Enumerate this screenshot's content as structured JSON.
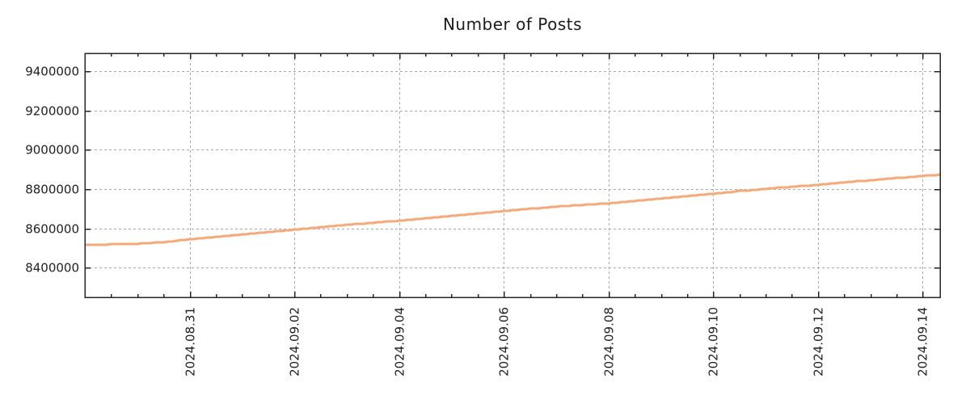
{
  "chart_data": {
    "type": "line",
    "title": "Number of Posts",
    "legend_position": "none",
    "grid": true,
    "x_axis": {
      "start": "2024.08.29 00:00",
      "end": "2024.09.14 08:00",
      "major_tick_labels": [
        "2024.08.31",
        "2024.09.02",
        "2024.09.04",
        "2024.09.06",
        "2024.09.08",
        "2024.09.10",
        "2024.09.12",
        "2024.09.14"
      ],
      "minor_tick_interval_days": 0.5
    },
    "y_axis": {
      "min": 8250000,
      "max": 9490000,
      "tick_values": [
        8400000,
        8600000,
        8800000,
        9000000,
        9200000,
        9400000
      ]
    },
    "series": [
      {
        "name": "Number of Posts",
        "color": "#f6a878",
        "style": "steps",
        "points": [
          [
            "2024.08.29 00:00",
            8515000
          ],
          [
            "2024.08.29 12:00",
            8519000
          ],
          [
            "2024.08.30 00:00",
            8523000
          ],
          [
            "2024.08.30 12:00",
            8530000
          ],
          [
            "2024.08.31 00:00",
            8545000
          ],
          [
            "2024.08.31 12:00",
            8558000
          ],
          [
            "2024.09.01 00:00",
            8570000
          ],
          [
            "2024.09.01 12:00",
            8582000
          ],
          [
            "2024.09.02 00:00",
            8593000
          ],
          [
            "2024.09.02 12:00",
            8607000
          ],
          [
            "2024.09.03 00:00",
            8619000
          ],
          [
            "2024.09.03 12:00",
            8629000
          ],
          [
            "2024.09.04 00:00",
            8639000
          ],
          [
            "2024.09.04 12:00",
            8651000
          ],
          [
            "2024.09.05 00:00",
            8663000
          ],
          [
            "2024.09.05 12:00",
            8676000
          ],
          [
            "2024.09.06 00:00",
            8689000
          ],
          [
            "2024.09.06 12:00",
            8700000
          ],
          [
            "2024.09.07 00:00",
            8711000
          ],
          [
            "2024.09.07 12:00",
            8719000
          ],
          [
            "2024.09.08 00:00",
            8727000
          ],
          [
            "2024.09.08 12:00",
            8740000
          ],
          [
            "2024.09.09 00:00",
            8752000
          ],
          [
            "2024.09.09 12:00",
            8764000
          ],
          [
            "2024.09.10 00:00",
            8777000
          ],
          [
            "2024.09.10 12:00",
            8790000
          ],
          [
            "2024.09.11 00:00",
            8801000
          ],
          [
            "2024.09.11 12:00",
            8812000
          ],
          [
            "2024.09.12 00:00",
            8822000
          ],
          [
            "2024.09.12 12:00",
            8834000
          ],
          [
            "2024.09.13 00:00",
            8845000
          ],
          [
            "2024.09.13 12:00",
            8856000
          ],
          [
            "2024.09.14 00:00",
            8866000
          ],
          [
            "2024.09.14 08:00",
            8874000
          ]
        ]
      }
    ]
  },
  "colors": {
    "background": "#ffffff",
    "frame": "#262626",
    "grid": "#a8a8a8",
    "text": "#1f1f1f",
    "line": "#f6a878"
  }
}
